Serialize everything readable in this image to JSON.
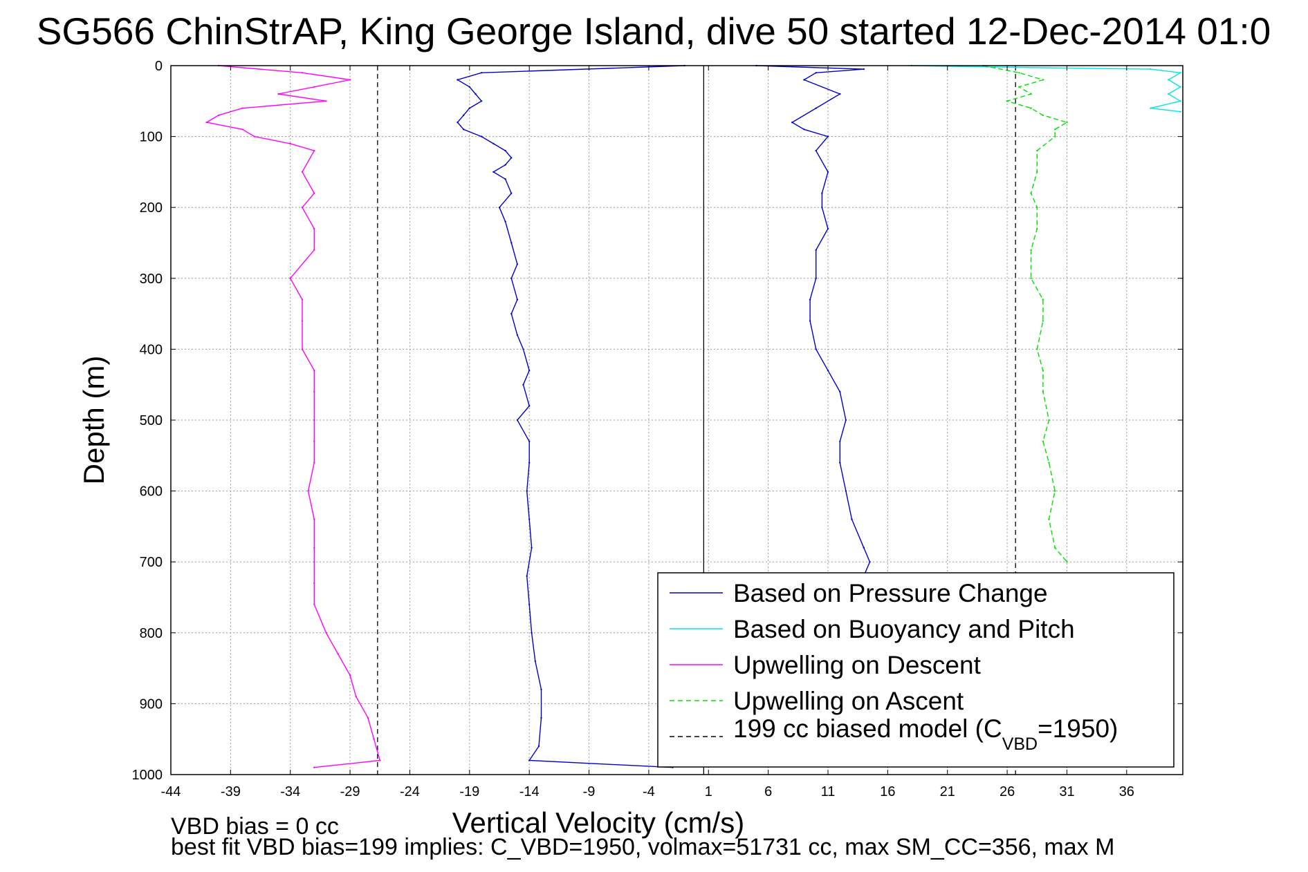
{
  "chart_data": {
    "type": "line",
    "title": "SG566 ChinStrAP, King George Island, dive 50 started 12-Dec-2014 01:0",
    "xlabel": "Vertical Velocity (cm/s)",
    "ylabel": "Depth (m)",
    "xlim": [
      -44,
      40.7
    ],
    "ylim": [
      1000,
      0
    ],
    "y_reversed": true,
    "grid": true,
    "x_ticks": [
      -44,
      -39,
      -34,
      -29,
      -24,
      -19,
      -14,
      -9,
      -4,
      1,
      6,
      11,
      16,
      21,
      26,
      31,
      36
    ],
    "y_ticks": [
      0,
      100,
      200,
      300,
      400,
      500,
      600,
      700,
      800,
      900,
      1000
    ],
    "legend_position": "bottom-right",
    "legend": [
      {
        "label": "Based on Pressure Change",
        "color": "#0000cc",
        "style": "solid"
      },
      {
        "label": "Based on Buoyancy and Pitch",
        "color": "#00e5e5",
        "style": "solid"
      },
      {
        "label": "Upwelling on Descent",
        "color": "#ff00ff",
        "style": "solid"
      },
      {
        "label": "Upwelling on Ascent",
        "color": "#00e000",
        "style": "dashed"
      },
      {
        "label": "199 cc biased model (C",
        "sub": "VBD",
        "tail": "=1950)",
        "color": "#000000",
        "style": "dashed"
      }
    ],
    "reference_lines": [
      {
        "x": 0.6,
        "color": "#000000",
        "style": "solid"
      },
      {
        "x": -26.7,
        "color": "#000000",
        "style": "dashed"
      },
      {
        "x": 26.7,
        "color": "#000000",
        "style": "dashed"
      }
    ],
    "series": [
      {
        "name": "Based on Pressure Change",
        "color": "#0000cc",
        "dash": false,
        "depth": [
          0,
          10,
          20,
          30,
          40,
          50,
          60,
          70,
          80,
          90,
          100,
          110,
          120,
          130,
          140,
          150,
          160,
          180,
          200,
          220,
          250,
          280,
          300,
          330,
          350,
          380,
          400,
          430,
          450,
          480,
          500,
          530,
          560,
          600,
          640,
          680,
          720,
          760,
          800,
          840,
          880,
          920,
          960,
          980,
          990
        ],
        "values": [
          -1,
          -18,
          -20,
          -19,
          -18.5,
          -18,
          -19,
          -19.5,
          -20,
          -19.5,
          -18,
          -17,
          -16,
          -15.5,
          -16,
          -17,
          -16,
          -15.5,
          -16.5,
          -16,
          -15.5,
          -15,
          -15.5,
          -15,
          -15.5,
          -15,
          -14.5,
          -14,
          -14.5,
          -14,
          -15,
          -14,
          -14,
          -14.2,
          -14,
          -13.8,
          -14.2,
          -14,
          -13.8,
          -13.5,
          -13,
          -13,
          -13.2,
          -14,
          -2
        ]
      },
      {
        "name": "Based on Pressure Change",
        "color": "#0000cc",
        "dash": false,
        "depth": [
          0,
          5,
          10,
          20,
          40,
          60,
          80,
          90,
          100,
          120,
          150,
          180,
          200,
          230,
          260,
          300,
          330,
          360,
          400,
          430,
          460,
          500,
          530,
          560,
          600,
          640,
          680,
          700,
          720
        ],
        "values": [
          5,
          14,
          10,
          9,
          12,
          10,
          8,
          9,
          11,
          10,
          11,
          10.5,
          10.5,
          11,
          10,
          10,
          9.5,
          9.5,
          10,
          11,
          12,
          12.5,
          12,
          12,
          12.5,
          13,
          14,
          14.5,
          14
        ]
      },
      {
        "name": "Based on Buoyancy and Pitch",
        "color": "#00e5e5",
        "dash": false,
        "depth": [
          0,
          2,
          5,
          10,
          20,
          30,
          40,
          50,
          60,
          65
        ],
        "values": [
          18,
          25,
          38,
          40.5,
          39.5,
          40.5,
          39.5,
          40.5,
          38,
          40.5
        ]
      },
      {
        "name": "Upwelling on Descent",
        "color": "#ff00ff",
        "dash": false,
        "depth": [
          0,
          10,
          20,
          30,
          40,
          50,
          60,
          70,
          80,
          90,
          100,
          110,
          120,
          150,
          180,
          200,
          230,
          260,
          300,
          330,
          360,
          400,
          430,
          460,
          500,
          530,
          560,
          600,
          640,
          680,
          700,
          730,
          760,
          800,
          830,
          860,
          890,
          920,
          950,
          980,
          990
        ],
        "values": [
          -40,
          -33,
          -29,
          -32,
          -35,
          -31,
          -38,
          -40,
          -41,
          -38,
          -37,
          -34,
          -32,
          -33,
          -32,
          -33,
          -32,
          -32,
          -34,
          -33,
          -33,
          -33,
          -32,
          -32,
          -32,
          -32,
          -32,
          -32.5,
          -32,
          -32,
          -32,
          -32,
          -32,
          -31,
          -30,
          -29,
          -28.5,
          -27.5,
          -27,
          -26.5,
          -32
        ]
      },
      {
        "name": "Upwelling on Ascent",
        "color": "#00e000",
        "dash": true,
        "depth": [
          0,
          10,
          20,
          30,
          40,
          50,
          60,
          70,
          80,
          90,
          100,
          120,
          150,
          180,
          200,
          230,
          260,
          300,
          330,
          360,
          400,
          430,
          460,
          500,
          530,
          560,
          600,
          640,
          680,
          700
        ],
        "values": [
          24,
          27,
          29,
          27,
          28,
          26,
          28,
          29,
          31,
          30,
          30,
          28.5,
          28.5,
          28,
          28.5,
          28.5,
          28,
          28,
          29,
          29,
          28.5,
          29,
          29,
          29.5,
          29,
          29.5,
          30,
          29.5,
          30,
          31
        ]
      }
    ]
  },
  "annotations": {
    "vbd_bias": "VBD bias = 0 cc",
    "best_fit": "best fit VBD bias=199 implies: C_VBD=1950, volmax=51731 cc, max SM_CC=356, max M"
  }
}
